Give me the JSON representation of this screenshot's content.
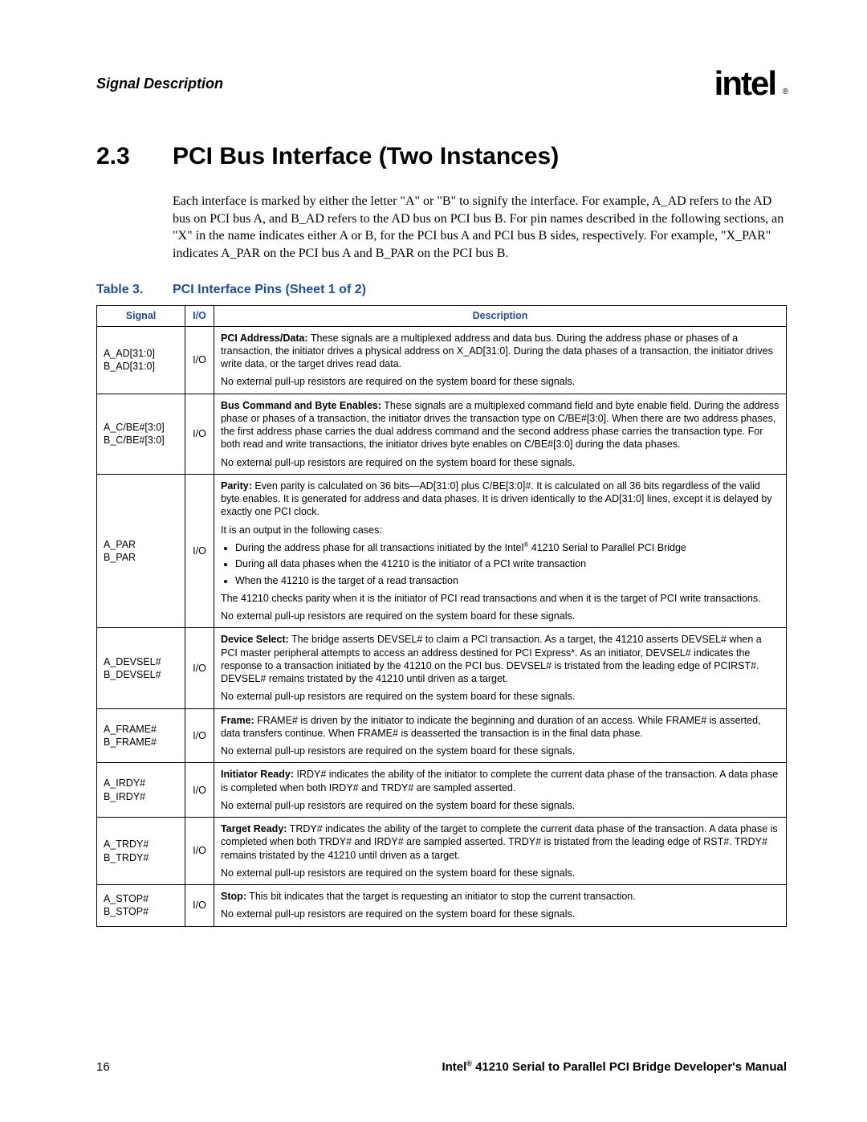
{
  "header": {
    "section_label": "Signal Description",
    "logo_text": "intel",
    "logo_reg": "®"
  },
  "section": {
    "number": "2.3",
    "title": "PCI Bus Interface (Two Instances)",
    "intro": "Each interface is marked by either the letter \"A\" or \"B\" to signify the interface. For example, A_AD refers to the AD bus on PCI bus A, and B_AD refers to the AD bus on PCI bus B. For pin names described in the following sections, an \"X\" in the name indicates either A or B, for the PCI bus A and PCI bus B sides, respectively. For example, \"X_PAR\" indicates A_PAR on the PCI bus A and B_PAR on the PCI bus B."
  },
  "table": {
    "caption_label": "Table 3.",
    "caption_title": "PCI Interface Pins (Sheet 1 of 2)",
    "headers": {
      "signal": "Signal",
      "io": "I/O",
      "desc": "Description"
    },
    "rows": [
      {
        "signal_a": "A_AD[31:0]",
        "signal_b": "B_AD[31:0]",
        "io": "I/O",
        "paras": [
          {
            "bold": "PCI Address/Data:",
            "text": " These signals are a multiplexed address and data bus. During the address phase or phases of a transaction, the initiator drives a physical address on X_AD[31:0]. During the data phases of a transaction, the initiator drives write data, or the target drives read data."
          },
          {
            "text": "No external pull-up resistors are required on the system board for these signals."
          }
        ]
      },
      {
        "signal_a": "A_C/BE#[3:0]",
        "signal_b": "B_C/BE#[3:0]",
        "io": "I/O",
        "paras": [
          {
            "bold": "Bus Command and Byte Enables:",
            "text": " These signals are a multiplexed command field and byte enable field. During the address phase or phases of a transaction, the initiator drives the transaction type on C/BE#[3:0]. When there are two address phases, the first address phase carries the dual address command and the second address phase carries the transaction type. For both read and write transactions, the initiator drives byte enables on C/BE#[3:0] during the data phases."
          },
          {
            "text": "No external pull-up resistors are required on the system board for these signals."
          }
        ]
      },
      {
        "signal_a": "A_PAR",
        "signal_b": "B_PAR",
        "io": "I/O",
        "paras": [
          {
            "bold": "Parity:",
            "text": " Even parity is calculated on 36 bits—AD[31:0] plus C/BE[3:0]#. It is calculated on all 36 bits regardless of the valid byte enables. It is generated for address and data phases. It is driven identically to the AD[31:0] lines, except it is delayed by exactly one PCI clock."
          },
          {
            "text": "It is an output in the following cases:"
          }
        ],
        "bullets": [
          "During the address phase for all transactions initiated by the Intel® 41210 Serial to Parallel PCI Bridge",
          "During all data phases when the 41210 is the initiator of a PCI write transaction",
          "When the 41210 is the target of a read transaction"
        ],
        "after": [
          {
            "text": "The 41210 checks parity when it is the initiator of PCI read transactions and when it is the target of PCI write transactions."
          },
          {
            "text": "No external pull-up resistors are required on the system board for these signals."
          }
        ]
      },
      {
        "signal_a": "A_DEVSEL#",
        "signal_b": "B_DEVSEL#",
        "io": "I/O",
        "paras": [
          {
            "bold": "Device Select:",
            "text": " The bridge asserts DEVSEL# to claim a PCI transaction. As a target, the 41210 asserts DEVSEL# when a PCI master peripheral attempts to access an address destined for PCI Express*. As an initiator, DEVSEL# indicates the response to a transaction initiated by the 41210 on the PCI bus. DEVSEL# is tristated from the leading edge of PCIRST#. DEVSEL# remains tristated by the 41210 until driven as a target."
          },
          {
            "text": "No external pull-up resistors are required on the system board for these signals."
          }
        ]
      },
      {
        "signal_a": "A_FRAME#",
        "signal_b": "B_FRAME#",
        "io": "I/O",
        "paras": [
          {
            "bold": "Frame:",
            "text": " FRAME# is driven by the initiator to indicate the beginning and duration of an access. While FRAME# is asserted, data transfers continue. When FRAME# is deasserted the transaction is in the final data phase."
          },
          {
            "text": "No external pull-up resistors are required on the system board for these signals."
          }
        ]
      },
      {
        "signal_a": "A_IRDY#",
        "signal_b": "B_IRDY#",
        "io": "I/O",
        "paras": [
          {
            "bold": "Initiator Ready:",
            "text": " IRDY# indicates the ability of the initiator to complete the current data phase of the transaction. A data phase is completed when both IRDY# and TRDY# are sampled asserted."
          },
          {
            "text": "No external pull-up resistors are required on the system board for these signals."
          }
        ]
      },
      {
        "signal_a": "A_TRDY#",
        "signal_b": "B_TRDY#",
        "io": "I/O",
        "paras": [
          {
            "bold": "Target Ready:",
            "text": " TRDY# indicates the ability of the target to complete the current data phase of the transaction. A data phase is completed when both TRDY# and IRDY# are sampled asserted. TRDY# is tristated from the leading edge of RST#. TRDY# remains tristated by the 41210 until driven as a target."
          },
          {
            "text": "No external pull-up resistors are required on the system board for these signals."
          }
        ]
      },
      {
        "signal_a": "A_STOP#",
        "signal_b": "B_STOP#",
        "io": "I/O",
        "paras": [
          {
            "bold": "Stop:",
            "text": " This bit indicates that the target is requesting an initiator to stop the current transaction."
          },
          {
            "text": "No external pull-up resistors are required on the system board for these signals."
          }
        ]
      }
    ]
  },
  "footer": {
    "page_number": "16",
    "doc_title_prefix": "Intel",
    "doc_title_reg": "®",
    "doc_title_rest": " 41210 Serial to Parallel PCI Bridge Developer's Manual"
  },
  "colors": {
    "heading_blue": "#1a4fa0",
    "text": "#000000",
    "background": "#ffffff"
  }
}
